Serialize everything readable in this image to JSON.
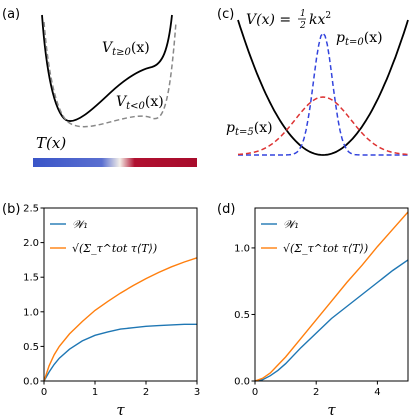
{
  "panels": {
    "a": {
      "label": "(a)",
      "curve_solid_label": "V",
      "curve_solid_sub": "t≥0",
      "curve_solid_arg": "(x)",
      "curve_dashed_label": "V",
      "curve_dashed_sub": "t<0",
      "curve_dashed_arg": "(x)",
      "temperature_label": "T(x)",
      "colors": {
        "solid": "#000000",
        "dashed": "#888888",
        "cold": "#3a55c8",
        "hot": "#b01030"
      }
    },
    "c": {
      "label": "(c)",
      "potential_label": "V(x) = ",
      "potential_frac_num": "1",
      "potential_frac_den": "2",
      "potential_rest": "kx",
      "potential_exp": "2",
      "p0_label": "p",
      "p0_sub": "t=0",
      "p0_arg": "(x)",
      "p5_label": "p",
      "p5_sub": "t=5",
      "p5_arg": "(x)",
      "colors": {
        "potential": "#000000",
        "p0": "#3344dd",
        "p5": "#dd3333"
      }
    }
  },
  "chart_data": [
    {
      "panel": "(b)",
      "type": "line",
      "xlabel": "τ",
      "ylabel": "",
      "xlim": [
        0,
        3
      ],
      "ylim": [
        0,
        2.5
      ],
      "xticks": [
        "0",
        "1",
        "2",
        "3"
      ],
      "yticks": [
        "0.0",
        "0.5",
        "1.0",
        "1.5",
        "2.0",
        "2.5"
      ],
      "legend_position": "top-left",
      "series": [
        {
          "name": "𝒲₁",
          "color": "#1f77b4",
          "x": [
            0,
            0.1,
            0.2,
            0.3,
            0.5,
            0.75,
            1.0,
            1.25,
            1.5,
            1.75,
            2.0,
            2.25,
            2.5,
            2.75,
            3.0
          ],
          "y": [
            0,
            0.13,
            0.24,
            0.33,
            0.46,
            0.58,
            0.66,
            0.71,
            0.75,
            0.77,
            0.79,
            0.8,
            0.81,
            0.82,
            0.82
          ]
        },
        {
          "name": "√(Σ_τ^tot τ⟨T⟩)",
          "color": "#ff7f0e",
          "x": [
            0,
            0.1,
            0.2,
            0.3,
            0.5,
            0.75,
            1.0,
            1.25,
            1.5,
            1.75,
            2.0,
            2.25,
            2.5,
            2.75,
            3.0
          ],
          "y": [
            0,
            0.22,
            0.38,
            0.5,
            0.68,
            0.86,
            1.02,
            1.15,
            1.27,
            1.38,
            1.48,
            1.57,
            1.65,
            1.72,
            1.78
          ]
        }
      ]
    },
    {
      "panel": "(d)",
      "type": "line",
      "xlabel": "τ",
      "ylabel": "",
      "xlim": [
        0,
        5
      ],
      "ylim": [
        0,
        1.3
      ],
      "xticks": [
        "0",
        "2",
        "4"
      ],
      "yticks": [
        "0.0",
        "0.5",
        "1.0"
      ],
      "legend_position": "top-left",
      "series": [
        {
          "name": "𝒲₁",
          "color": "#1f77b4",
          "x": [
            0,
            0.25,
            0.5,
            0.75,
            1.0,
            1.5,
            2.0,
            2.5,
            3.0,
            3.5,
            4.0,
            4.5,
            5.0
          ],
          "y": [
            0,
            0.01,
            0.04,
            0.08,
            0.13,
            0.25,
            0.36,
            0.47,
            0.56,
            0.65,
            0.74,
            0.83,
            0.91
          ]
        },
        {
          "name": "√(Σ_τ^tot τ⟨T⟩)",
          "color": "#ff7f0e",
          "x": [
            0,
            0.25,
            0.5,
            0.75,
            1.0,
            1.5,
            2.0,
            2.5,
            3.0,
            3.5,
            4.0,
            4.5,
            5.0
          ],
          "y": [
            0,
            0.02,
            0.06,
            0.12,
            0.18,
            0.32,
            0.46,
            0.6,
            0.74,
            0.87,
            1.01,
            1.14,
            1.27
          ]
        }
      ]
    }
  ]
}
